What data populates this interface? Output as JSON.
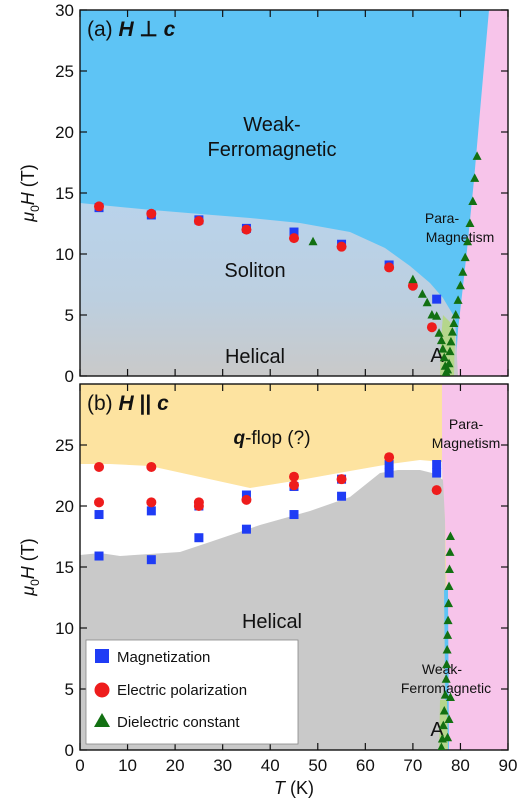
{
  "chart_data": [
    {
      "type": "scatter",
      "panel_label_prefix": "(a) ",
      "panel_label_h": "H",
      "panel_label_op": " ⊥ ",
      "panel_label_c": "c",
      "ylabel_mu": "μ",
      "ylabel_sub": "0",
      "ylabel_h": "H",
      "ylabel_unit": " (T)",
      "xlim": [
        0,
        90
      ],
      "ylim": [
        0,
        30
      ],
      "yticks": [
        "0",
        "5",
        "10",
        "15",
        "20",
        "25",
        "30"
      ],
      "grid": false,
      "region_colors": {
        "weak_ferromagnetic": "#5ec4f5",
        "paramagnetism": "#f7c4ea",
        "soliton": "#b9d3eb",
        "helical": "#c9c9c9",
        "phase_a": "#b5d68c"
      },
      "region_labels": {
        "weak_ferro_1": "Weak-",
        "weak_ferro_2": "Ferromagnetic",
        "para_1": "Para-",
        "para_2": "Magnetism",
        "soliton": "Soliton",
        "helical": "Helical",
        "phase_a": "A"
      },
      "series": [
        {
          "name": "Magnetization",
          "marker": "square",
          "color": "#1f3cf5",
          "points": [
            [
              4,
              13.8
            ],
            [
              15,
              13.2
            ],
            [
              25,
              12.8
            ],
            [
              35,
              12.1
            ],
            [
              45,
              11.8
            ],
            [
              55,
              10.8
            ],
            [
              65,
              9.1
            ],
            [
              75,
              6.3
            ]
          ]
        },
        {
          "name": "Electric polarization",
          "marker": "circle",
          "color": "#ee1c1c",
          "points": [
            [
              4,
              13.9
            ],
            [
              15,
              13.3
            ],
            [
              25,
              12.7
            ],
            [
              35,
              12.0
            ],
            [
              45,
              11.3
            ],
            [
              55,
              10.6
            ],
            [
              65,
              8.9
            ],
            [
              70,
              7.4
            ],
            [
              74,
              4.0
            ]
          ]
        },
        {
          "name": "Dielectric constant",
          "marker": "triangle",
          "color": "#127012",
          "points": [
            [
              49,
              11.0
            ],
            [
              70,
              7.9
            ],
            [
              72,
              6.7
            ],
            [
              73,
              6.0
            ],
            [
              74,
              5.0
            ],
            [
              75,
              4.9
            ],
            [
              75.5,
              3.5
            ],
            [
              76,
              2.9
            ],
            [
              76.3,
              2.2
            ],
            [
              76.6,
              1.5
            ],
            [
              76.8,
              0.8
            ],
            [
              77,
              0.3
            ],
            [
              77.3,
              0.5
            ],
            [
              77.6,
              1.0
            ],
            [
              77.8,
              2.0
            ],
            [
              78,
              2.8
            ],
            [
              78.3,
              3.6
            ],
            [
              78.6,
              4.3
            ],
            [
              79,
              5.0
            ],
            [
              79.5,
              6.2
            ],
            [
              80,
              7.4
            ],
            [
              80.5,
              8.5
            ],
            [
              81,
              9.7
            ],
            [
              81.5,
              11.0
            ],
            [
              82,
              12.5
            ],
            [
              82.6,
              14.3
            ],
            [
              83,
              16.2
            ],
            [
              83.5,
              18.0
            ]
          ]
        }
      ]
    },
    {
      "type": "scatter",
      "panel_label_prefix": "(b) ",
      "panel_label_h": "H",
      "panel_label_op": " || ",
      "panel_label_c": "c",
      "xlabel_t": "T",
      "xlabel_unit": " (K)",
      "ylabel_mu": "μ",
      "ylabel_sub": "0",
      "ylabel_h": "H",
      "ylabel_unit": " (T)",
      "xlim": [
        0,
        90
      ],
      "ylim": [
        0,
        30
      ],
      "xticks": [
        "0",
        "10",
        "20",
        "30",
        "40",
        "50",
        "60",
        "70",
        "80",
        "90"
      ],
      "yticks": [
        "0",
        "5",
        "10",
        "15",
        "20",
        "25"
      ],
      "grid": false,
      "legend_position": "bottom-left",
      "region_colors": {
        "q_flop": "#fde3a0",
        "paramagnetism": "#f7c4ea",
        "helical": "#c9c9c9",
        "weak_ferromagnetic": "#5ec4f5",
        "phase_a": "#b5d68c"
      },
      "region_labels": {
        "q_flop_q": "q",
        "q_flop_rest": "-flop (?)",
        "para_1": "Para-",
        "para_2": "Magnetism",
        "helical": "Helical",
        "weak_ferro_1": "Weak-",
        "weak_ferro_2": "Ferromagnetic",
        "phase_a": "A"
      },
      "series": [
        {
          "name": "Magnetization",
          "marker": "square",
          "color": "#1f3cf5",
          "points": [
            [
              4,
              19.3
            ],
            [
              4,
              15.9
            ],
            [
              15,
              19.6
            ],
            [
              15,
              15.6
            ],
            [
              25,
              20.0
            ],
            [
              25,
              17.4
            ],
            [
              35,
              20.9
            ],
            [
              35,
              18.1
            ],
            [
              45,
              21.6
            ],
            [
              45,
              19.3
            ],
            [
              55,
              22.2
            ],
            [
              55,
              20.8
            ],
            [
              65,
              23.4
            ],
            [
              65,
              22.7
            ],
            [
              75,
              23.4
            ],
            [
              75,
              22.7
            ]
          ]
        },
        {
          "name": "Electric polarization",
          "marker": "circle",
          "color": "#ee1c1c",
          "points": [
            [
              4,
              23.2
            ],
            [
              4,
              20.3
            ],
            [
              15,
              23.2
            ],
            [
              15,
              20.3
            ],
            [
              25,
              20.3
            ],
            [
              25,
              20.0
            ],
            [
              35,
              20.5
            ],
            [
              45,
              22.4
            ],
            [
              45,
              21.7
            ],
            [
              55,
              22.2
            ],
            [
              65,
              24.0
            ],
            [
              75,
              21.3
            ]
          ]
        },
        {
          "name": "Dielectric constant",
          "marker": "triangle",
          "color": "#127012",
          "points": [
            [
              76,
              0.2
            ],
            [
              76.2,
              0.9
            ],
            [
              76.4,
              2.0
            ],
            [
              76.6,
              3.2
            ],
            [
              76.8,
              4.5
            ],
            [
              77,
              5.8
            ],
            [
              77.1,
              7.0
            ],
            [
              77.2,
              8.2
            ],
            [
              77.3,
              9.4
            ],
            [
              77.4,
              10.6
            ],
            [
              77.5,
              12.0
            ],
            [
              77.6,
              13.4
            ],
            [
              77.7,
              14.8
            ],
            [
              77.8,
              16.2
            ],
            [
              77.9,
              17.5
            ],
            [
              77.3,
              1.0
            ],
            [
              77.6,
              2.5
            ],
            [
              77.9,
              4.3
            ]
          ]
        }
      ]
    }
  ]
}
